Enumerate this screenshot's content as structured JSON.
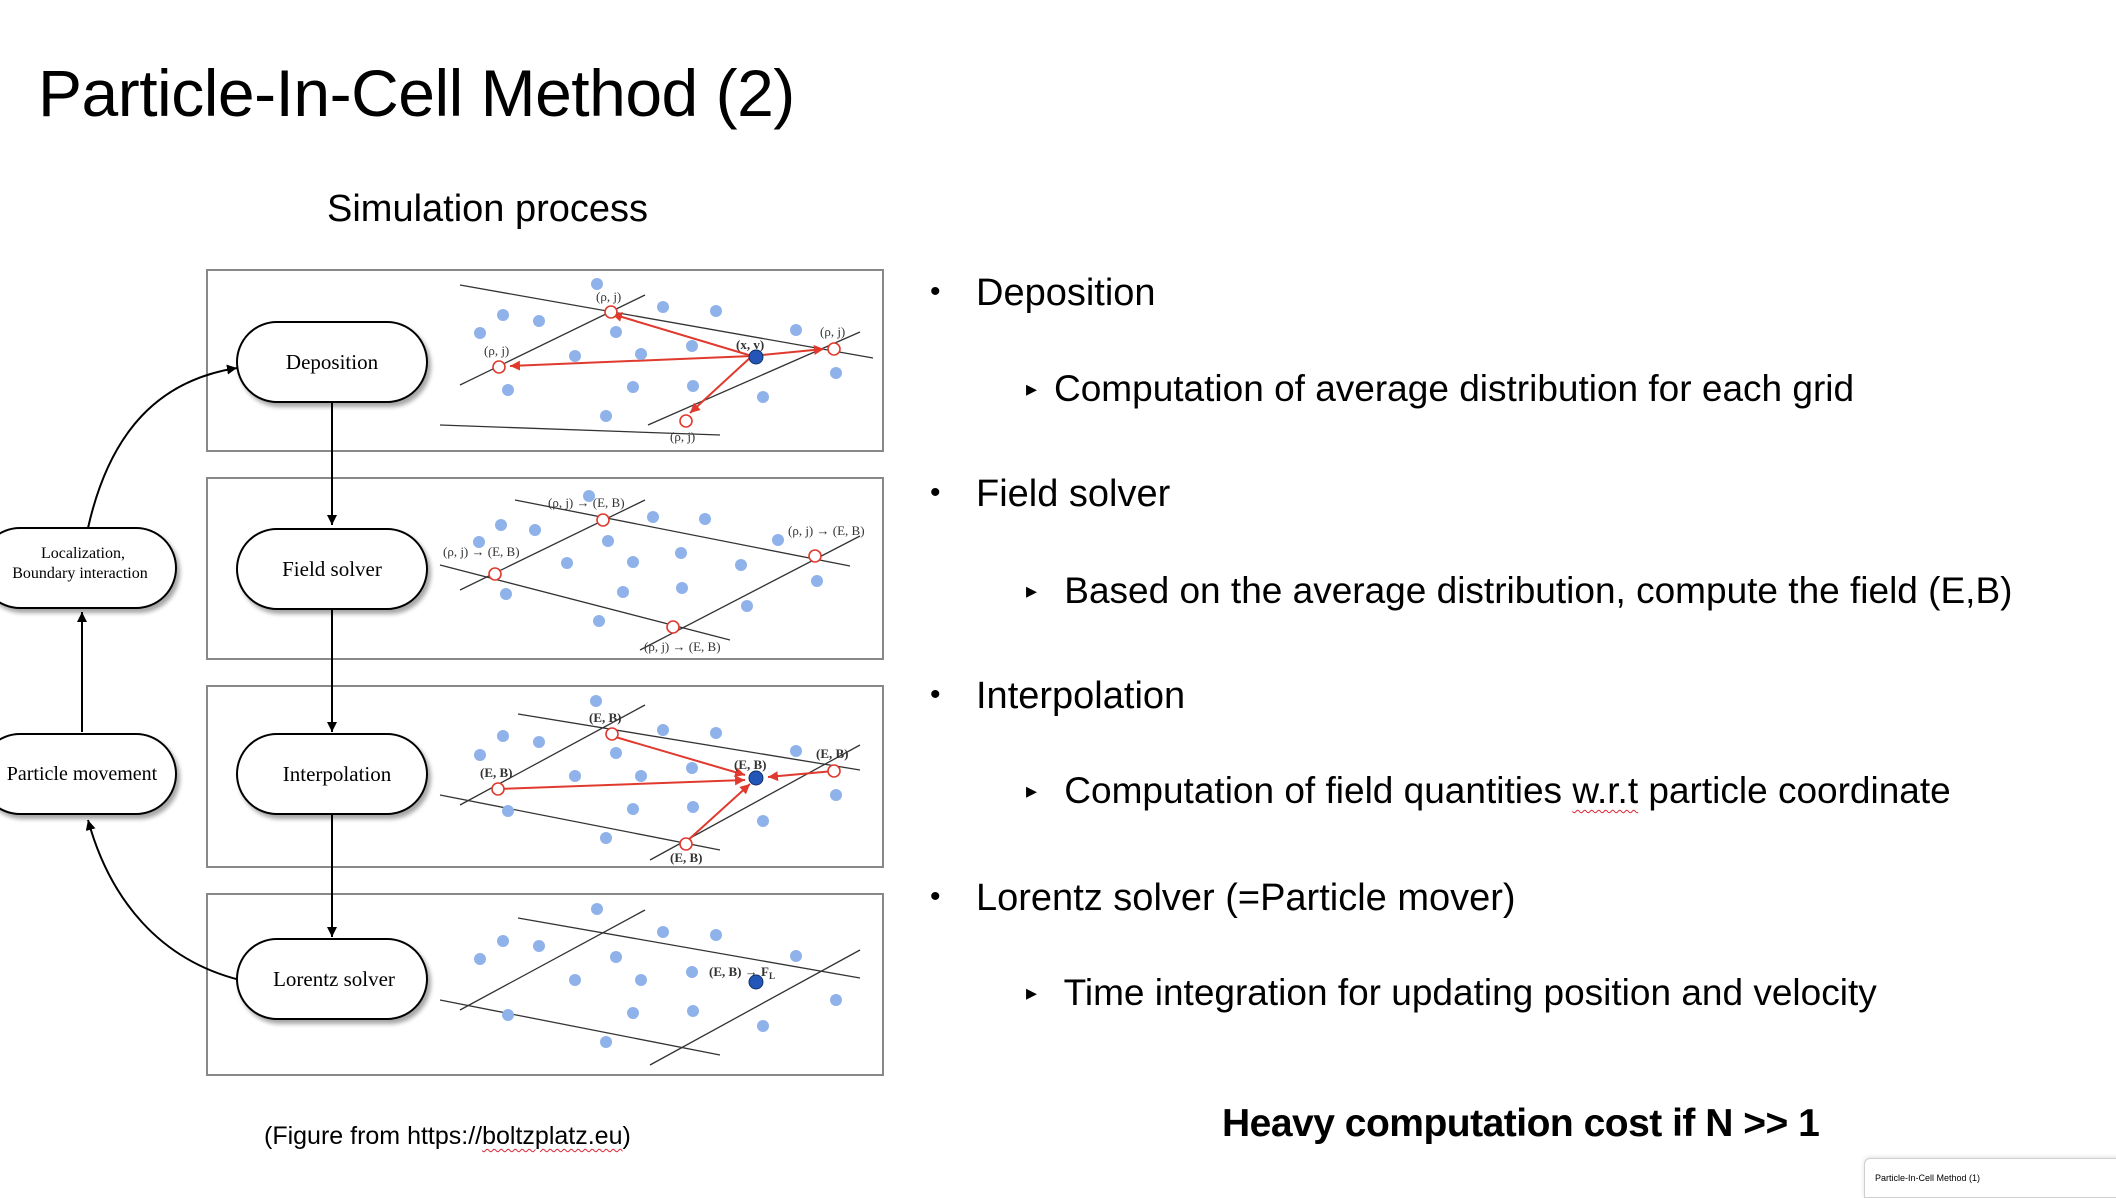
{
  "slide": {
    "title": "Particle-In-Cell Method (2)"
  },
  "figure": {
    "title": "Simulation process",
    "caption_prefix": "(Figure from https://",
    "caption_link": "boltzplatz.eu",
    "caption_suffix": ")",
    "steps": [
      "Deposition",
      "Field solver",
      "Interpolation",
      "Lorentz solver"
    ],
    "side_nodes": [
      "Localization,",
      "Boundary interaction",
      "Particle movement"
    ],
    "labels": {
      "rho_j": "(ρ, j)",
      "xv": "(x, v)",
      "rhoj_to_EB": "(ρ, j) → (E, B)",
      "EB": "(E, B)",
      "EB_to_FL": "(E, B) → F",
      "FL_sub": "L"
    }
  },
  "bullets": [
    {
      "text": "Deposition",
      "sub": "Computation of average distribution for each grid"
    },
    {
      "text": "Field solver",
      "sub": "Based on the average distribution, compute the field (E,B)"
    },
    {
      "text": "Interpolation",
      "sub_before": "Computation of field quantities ",
      "sub_squiggle": "w.r.t",
      "sub_after": " particle coordinate"
    },
    {
      "text": "Lorentz solver (=Particle mover)",
      "sub": "Time integration for updating position and velocity"
    }
  ],
  "footer": {
    "note": "Heavy computation cost if N >> 1"
  },
  "thumbnail": {
    "label": "Particle-In-Cell Method (1)"
  },
  "colors": {
    "particle": "#8fb2ea",
    "highlight_particle": "#2456b8",
    "arrow": "#e03a2e",
    "squiggle": "#d23"
  }
}
